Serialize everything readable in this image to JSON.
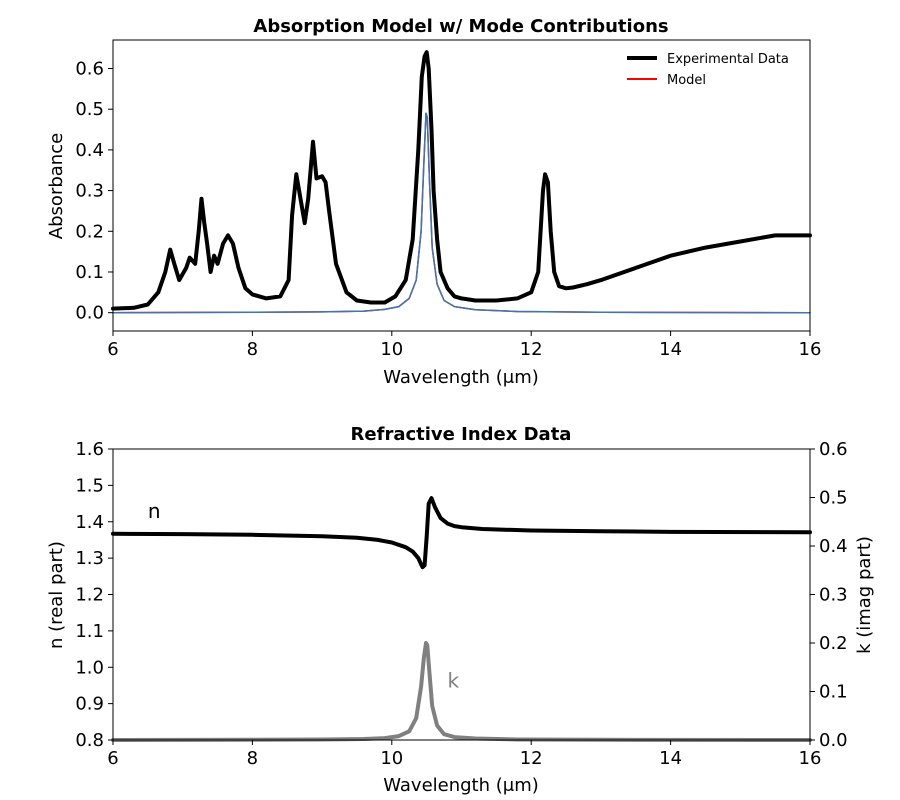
{
  "chart_data": [
    {
      "type": "line",
      "title": "Absorption Model w/ Mode Contributions",
      "xlabel": "Wavelength (μm)",
      "ylabel": "Absorbance",
      "xlim": [
        6,
        16
      ],
      "ylim": [
        -0.045,
        0.67
      ],
      "xticks": [
        6,
        8,
        10,
        12,
        14,
        16
      ],
      "xtick_labels": [
        "6",
        "8",
        "10",
        "12",
        "14",
        "16"
      ],
      "yticks": [
        0.0,
        0.1,
        0.2,
        0.3,
        0.4,
        0.5,
        0.6
      ],
      "ytick_labels": [
        "0.0",
        "0.1",
        "0.2",
        "0.3",
        "0.4",
        "0.5",
        "0.6"
      ],
      "legend_position": "top-right",
      "grid": false,
      "series": [
        {
          "name": "Experimental Data",
          "color": "#000000",
          "x": [
            6.0,
            6.3,
            6.5,
            6.65,
            6.75,
            6.82,
            6.88,
            6.95,
            7.05,
            7.1,
            7.18,
            7.23,
            7.27,
            7.31,
            7.35,
            7.4,
            7.45,
            7.5,
            7.58,
            7.65,
            7.72,
            7.8,
            7.9,
            8.0,
            8.2,
            8.4,
            8.52,
            8.57,
            8.63,
            8.7,
            8.75,
            8.8,
            8.87,
            8.92,
            9.0,
            9.05,
            9.1,
            9.2,
            9.35,
            9.5,
            9.7,
            9.9,
            10.05,
            10.2,
            10.3,
            10.38,
            10.43,
            10.47,
            10.5,
            10.53,
            10.57,
            10.6,
            10.65,
            10.7,
            10.8,
            10.9,
            11.0,
            11.2,
            11.5,
            11.8,
            12.0,
            12.1,
            12.17,
            12.2,
            12.24,
            12.28,
            12.33,
            12.4,
            12.5,
            12.6,
            12.8,
            13.0,
            13.5,
            14.0,
            14.5,
            15.0,
            15.5,
            15.7,
            16.0
          ],
          "y": [
            0.01,
            0.012,
            0.02,
            0.05,
            0.1,
            0.155,
            0.12,
            0.08,
            0.11,
            0.135,
            0.12,
            0.2,
            0.28,
            0.22,
            0.17,
            0.1,
            0.14,
            0.12,
            0.17,
            0.19,
            0.17,
            0.11,
            0.06,
            0.045,
            0.035,
            0.04,
            0.08,
            0.24,
            0.34,
            0.27,
            0.22,
            0.28,
            0.42,
            0.33,
            0.335,
            0.32,
            0.25,
            0.12,
            0.05,
            0.03,
            0.025,
            0.025,
            0.04,
            0.08,
            0.18,
            0.4,
            0.58,
            0.63,
            0.64,
            0.6,
            0.45,
            0.3,
            0.18,
            0.1,
            0.06,
            0.04,
            0.035,
            0.03,
            0.03,
            0.035,
            0.05,
            0.1,
            0.3,
            0.34,
            0.32,
            0.2,
            0.1,
            0.065,
            0.06,
            0.062,
            0.07,
            0.08,
            0.11,
            0.14,
            0.16,
            0.175,
            0.19,
            0.19,
            0.19
          ]
        },
        {
          "name": "Model",
          "color": "#ff0000",
          "x": [
            6.0,
            8.0,
            9.0,
            9.6,
            9.9,
            10.1,
            10.25,
            10.35,
            10.42,
            10.46,
            10.49,
            10.51,
            10.54,
            10.58,
            10.65,
            10.75,
            10.9,
            11.2,
            11.8,
            13.0,
            16.0
          ],
          "y": [
            0.0,
            0.001,
            0.002,
            0.004,
            0.008,
            0.015,
            0.035,
            0.08,
            0.2,
            0.37,
            0.49,
            0.48,
            0.33,
            0.16,
            0.07,
            0.03,
            0.015,
            0.007,
            0.003,
            0.001,
            0.0
          ]
        },
        {
          "color": "#3a78b5",
          "x": [
            6.0,
            8.0,
            9.0,
            9.6,
            9.9,
            10.1,
            10.25,
            10.35,
            10.42,
            10.46,
            10.49,
            10.51,
            10.54,
            10.58,
            10.65,
            10.75,
            10.9,
            11.2,
            11.8,
            13.0,
            16.0
          ],
          "y": [
            0.0,
            0.001,
            0.002,
            0.004,
            0.008,
            0.015,
            0.035,
            0.08,
            0.2,
            0.37,
            0.49,
            0.48,
            0.33,
            0.16,
            0.07,
            0.03,
            0.015,
            0.007,
            0.003,
            0.001,
            0.0
          ]
        }
      ]
    },
    {
      "type": "line",
      "title": "Refractive Index Data",
      "xlabel": "Wavelength (μm)",
      "ylabel": "n (real part)",
      "ylabel_right": "k (imag part)",
      "xlim": [
        6,
        16
      ],
      "ylim": [
        0.8,
        1.6
      ],
      "ylim_right": [
        0.0,
        0.6
      ],
      "xticks": [
        6,
        8,
        10,
        12,
        14,
        16
      ],
      "xtick_labels": [
        "6",
        "8",
        "10",
        "12",
        "14",
        "16"
      ],
      "yticks": [
        0.8,
        0.9,
        1.0,
        1.1,
        1.2,
        1.3,
        1.4,
        1.5,
        1.6
      ],
      "ytick_labels": [
        "0.8",
        "0.9",
        "1.0",
        "1.1",
        "1.2",
        "1.3",
        "1.4",
        "1.5",
        "1.6"
      ],
      "yticks_right": [
        0.0,
        0.1,
        0.2,
        0.3,
        0.4,
        0.5,
        0.6
      ],
      "ytick_labels_right": [
        "0.0",
        "0.1",
        "0.2",
        "0.3",
        "0.4",
        "0.5",
        "0.6"
      ],
      "grid": false,
      "annotations": [
        {
          "text": "n",
          "x": 6.5,
          "y": 1.41,
          "color": "#000000"
        },
        {
          "text": "k",
          "x": 10.8,
          "y": 0.945,
          "color": "#808080"
        }
      ],
      "series": [
        {
          "name": "n",
          "axis": "left",
          "color": "#000000",
          "x": [
            6.0,
            7.0,
            8.0,
            9.0,
            9.5,
            9.8,
            10.0,
            10.2,
            10.3,
            10.38,
            10.44,
            10.47,
            10.5,
            10.53,
            10.57,
            10.62,
            10.7,
            10.8,
            10.9,
            11.0,
            11.3,
            12.0,
            13.0,
            14.0,
            16.0
          ],
          "y": [
            1.367,
            1.366,
            1.364,
            1.36,
            1.356,
            1.35,
            1.343,
            1.33,
            1.318,
            1.3,
            1.275,
            1.28,
            1.36,
            1.45,
            1.465,
            1.44,
            1.41,
            1.395,
            1.388,
            1.385,
            1.38,
            1.376,
            1.374,
            1.372,
            1.371
          ]
        },
        {
          "name": "k",
          "axis": "right",
          "color": "#808080",
          "x": [
            6.0,
            8.0,
            9.0,
            9.6,
            9.9,
            10.1,
            10.25,
            10.35,
            10.42,
            10.46,
            10.49,
            10.51,
            10.54,
            10.58,
            10.65,
            10.75,
            10.9,
            11.2,
            11.8,
            13.0,
            16.0
          ],
          "y": [
            0.0,
            0.0005,
            0.001,
            0.002,
            0.004,
            0.008,
            0.018,
            0.045,
            0.11,
            0.17,
            0.2,
            0.195,
            0.14,
            0.07,
            0.03,
            0.012,
            0.006,
            0.003,
            0.001,
            0.0005,
            0.0
          ]
        }
      ]
    }
  ]
}
